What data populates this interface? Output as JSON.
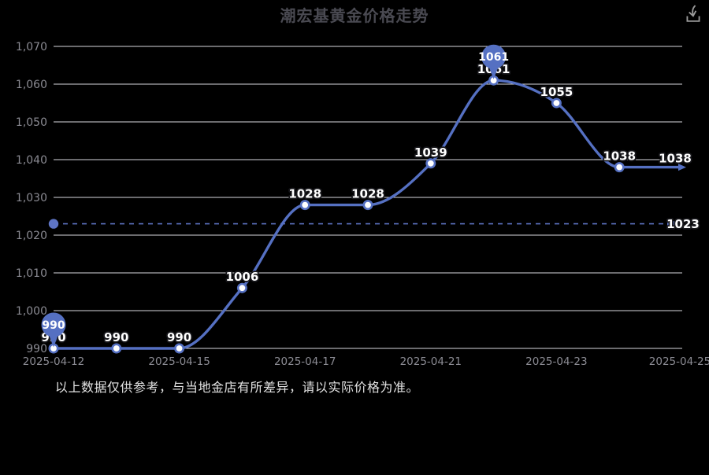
{
  "title": "潮宏基黄金价格走势",
  "toolbar": {
    "download_icon": "download"
  },
  "disclaimer": "以上数据仅供参考，与当地金店有所差异，请以实际价格为准。",
  "colors": {
    "background": "#000000",
    "title": "#4a4a52",
    "line": "#5570c2",
    "point_fill": "#ffffff",
    "grid": "#d9d9de",
    "axis_label": "#8b8b93",
    "value_label": "#ffffff",
    "value_label_outline": "#17171b",
    "pin_fill": "#5570c2",
    "pin_text": "#ffffff",
    "reference_line": "#5e74c4",
    "disclaimer": "#e3e3e3",
    "icon": "#9a9a9a"
  },
  "chart_data": {
    "type": "line",
    "title": "潮宏基黄金价格走势",
    "smooth": true,
    "grid": true,
    "n_points": 11,
    "values": [
      990,
      990,
      990,
      1006,
      1028,
      1028,
      1039,
      1061,
      1055,
      1038,
      1038
    ],
    "point_labels": [
      "990",
      "990",
      "990",
      "1006",
      "1028",
      "1028",
      "1039",
      "1061",
      "1055",
      "1038",
      "1038"
    ],
    "x_tick_labels": [
      "2025-04-12",
      "2025-04-15",
      "2025-04-17",
      "2025-04-21",
      "2025-04-23",
      "2025-04-25"
    ],
    "x_tick_indices": [
      0,
      2,
      4,
      6,
      8,
      10
    ],
    "ylim": [
      990,
      1070
    ],
    "y_ticks": [
      990,
      1000,
      1010,
      1020,
      1030,
      1040,
      1050,
      1060,
      1070
    ],
    "y_tick_labels": [
      "990",
      "1,000",
      "1,010",
      "1,020",
      "1,030",
      "1,040",
      "1,050",
      "1,060",
      "1,070"
    ],
    "pin_markers": [
      {
        "index": 0,
        "label": "990"
      },
      {
        "index": 7,
        "label": "1061"
      }
    ],
    "reference_line": {
      "value": 1023,
      "label": "1023",
      "style": "dashed"
    },
    "end_arrow": true
  }
}
